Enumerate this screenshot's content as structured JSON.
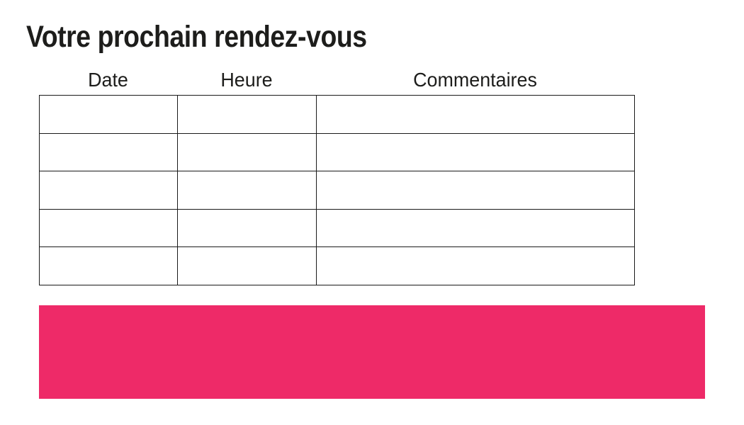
{
  "title": "Votre prochain rendez-vous",
  "table": {
    "columns": [
      {
        "label": "Date"
      },
      {
        "label": "Heure"
      },
      {
        "label": "Commentaires"
      }
    ],
    "rows": [
      [
        "",
        "",
        ""
      ],
      [
        "",
        "",
        ""
      ],
      [
        "",
        "",
        ""
      ],
      [
        "",
        "",
        ""
      ],
      [
        "",
        "",
        ""
      ]
    ]
  },
  "highlight": {
    "color": "#EE2A68"
  },
  "colors": {
    "text": "#1D1D1B",
    "table_border": "#1A1A1A",
    "background": "#FFFFFF"
  }
}
